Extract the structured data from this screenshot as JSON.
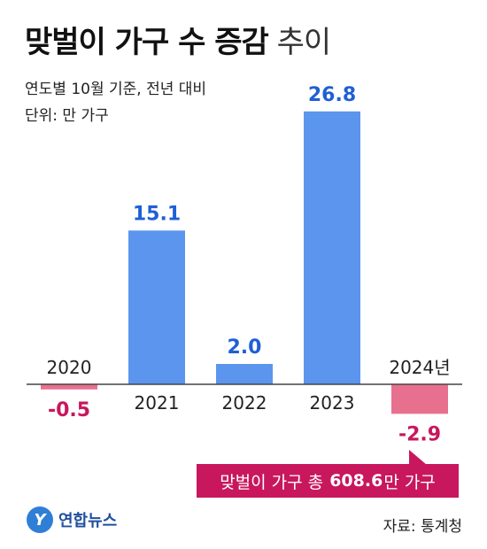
{
  "title_bold": "맞벌이 가구 수 증감",
  "title_light": "추이",
  "subtitle": "연도별 10월 기준, 전년 대비",
  "unit": "단위: 만 가구",
  "callout": {
    "prefix": "맞벌이 가구 총",
    "value": "608.6",
    "suffix": "만 가구"
  },
  "logo": {
    "mark": "Y",
    "name": "연합뉴스"
  },
  "source": "자료: 통계청",
  "colors": {
    "positive": "#5b95ee",
    "negative": "#e8708f",
    "negative_label": "#c8175d",
    "positive_label": "#1f5fd6"
  },
  "chart_data": {
    "type": "bar",
    "categories": [
      "2020",
      "2021",
      "2022",
      "2023",
      "2024년"
    ],
    "values": [
      -0.5,
      15.1,
      2.0,
      26.8,
      -2.9
    ],
    "value_labels": [
      "-0.5",
      "15.1",
      "2.0",
      "26.8",
      "-2.9"
    ],
    "title": "맞벌이 가구 수 증감 추이",
    "ylabel": "",
    "ylim": [
      -3,
      27
    ],
    "grid": false
  }
}
